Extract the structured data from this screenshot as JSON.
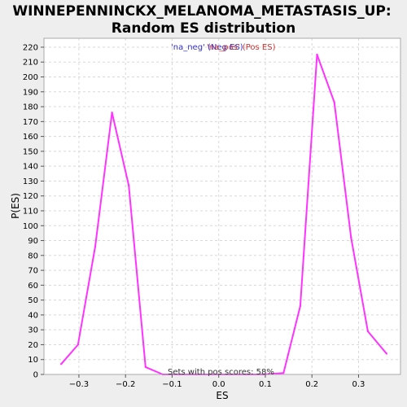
{
  "chart_data": {
    "type": "line",
    "title_line1": "WINNEPENNINCKX_MELANOMA_METASTASIS_UP:",
    "title_line2": "Random ES distribution",
    "xlabel": "ES",
    "ylabel": "P(ES)",
    "xlim": [
      -0.375,
      0.39
    ],
    "ylim": [
      0,
      226
    ],
    "xticks": [
      -0.3,
      -0.2,
      -0.1,
      0.0,
      0.1,
      0.2,
      0.3
    ],
    "xtick_labels": [
      "−0.3",
      "−0.2",
      "−0.1",
      "0.0",
      "0.1",
      "0.2",
      "0.3"
    ],
    "yticks": [
      0,
      10,
      20,
      30,
      40,
      50,
      60,
      70,
      80,
      90,
      100,
      110,
      120,
      130,
      140,
      150,
      160,
      170,
      180,
      190,
      200,
      210,
      220
    ],
    "grid": true,
    "legend_position": "top-center",
    "series": [
      {
        "name": "'na_neg' (Neg ES)",
        "color": "#3333cc",
        "points": []
      },
      {
        "name": "'na_pos' (Pos ES)",
        "color": "#cc3333",
        "points": []
      },
      {
        "color": "#ff33ff",
        "points": [
          [
            -0.338,
            7
          ],
          [
            -0.302,
            20
          ],
          [
            -0.265,
            86
          ],
          [
            -0.229,
            176
          ],
          [
            -0.193,
            127
          ],
          [
            -0.157,
            5
          ],
          [
            -0.12,
            0
          ],
          [
            -0.084,
            0
          ],
          [
            -0.048,
            0
          ],
          [
            -0.012,
            0
          ],
          [
            0.024,
            0
          ],
          [
            0.06,
            0
          ],
          [
            0.096,
            0
          ],
          [
            0.139,
            1
          ],
          [
            0.175,
            46
          ],
          [
            0.211,
            215
          ],
          [
            0.248,
            183
          ],
          [
            0.284,
            92
          ],
          [
            0.32,
            29
          ],
          [
            0.36,
            14
          ]
        ]
      }
    ],
    "annotation": "Sets with pos scores: 58%"
  },
  "colors": {
    "background": "#eeeeee",
    "plot_background": "#ffffff",
    "line": "#ff33ff",
    "neg_legend": "#3333cc",
    "pos_legend": "#cc3333"
  }
}
